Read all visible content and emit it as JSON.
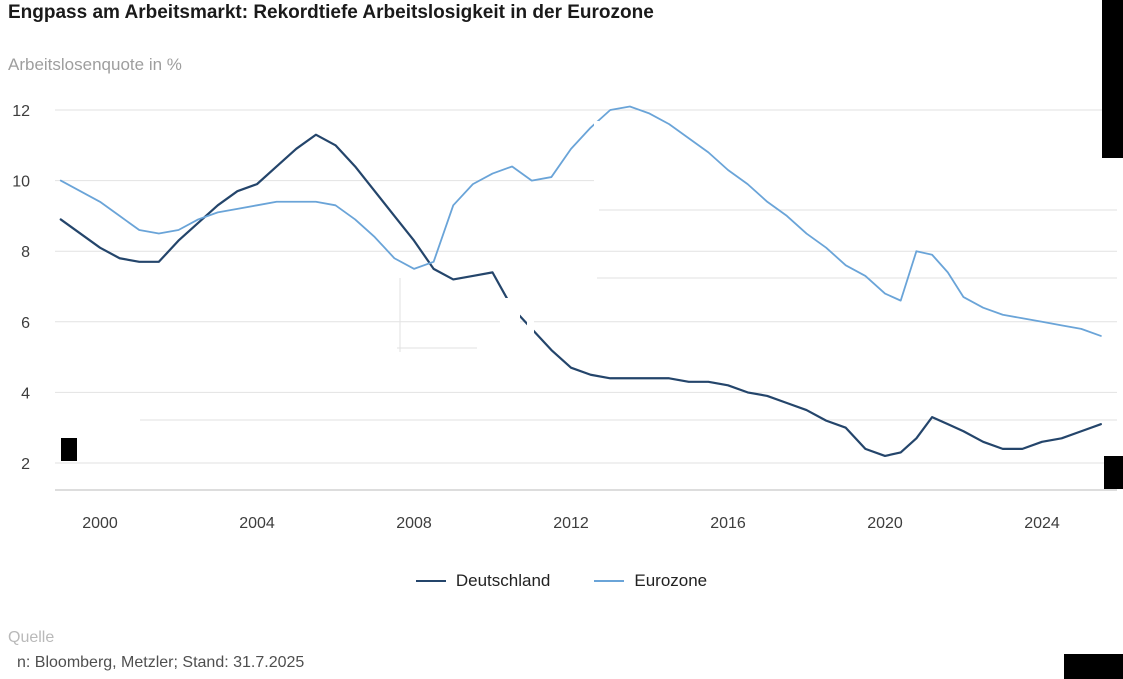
{
  "page": {
    "title": "Engpass am Arbeitsmarkt: Rekordtiefe Arbeitslosigkeit in der Eurozone",
    "subtitle": "Arbeitslosenquote in %"
  },
  "legend": [
    {
      "label": "Deutschland",
      "color": "#24456b"
    },
    {
      "label": "Eurozone",
      "color": "#6aa4d8"
    }
  ],
  "source": {
    "fragment_top": "Quelle",
    "fragment_bottom": "n: Bloomberg, Metzler; Stand: 31.7.2025"
  },
  "chart_data": {
    "type": "line",
    "title": "Engpass am Arbeitsmarkt: Rekordtiefe Arbeitslosigkeit in der Eurozone",
    "ylabel": "Arbeitslosenquote in %",
    "xlabel": "",
    "grid": true,
    "legend_position": "bottom",
    "xlim": [
      1998.9,
      2025.9
    ],
    "ylim": [
      1.2,
      12.6
    ],
    "xticks": [
      2000,
      2004,
      2008,
      2012,
      2016,
      2020,
      2024
    ],
    "yticks": [
      2,
      4,
      6,
      8,
      10,
      12
    ],
    "x": [
      1999,
      1999.5,
      2000,
      2000.5,
      2001,
      2001.5,
      2002,
      2002.5,
      2003,
      2003.5,
      2004,
      2004.5,
      2005,
      2005.5,
      2006,
      2006.5,
      2007,
      2007.5,
      2008,
      2008.5,
      2009,
      2009.5,
      2010,
      2010.5,
      2011,
      2011.5,
      2012,
      2012.5,
      2013,
      2013.5,
      2014,
      2014.5,
      2015,
      2015.5,
      2016,
      2016.5,
      2017,
      2017.5,
      2018,
      2018.5,
      2019,
      2019.5,
      2020,
      2020.4,
      2020.8,
      2021.2,
      2021.6,
      2022,
      2022.5,
      2023,
      2023.5,
      2024,
      2024.5,
      2025,
      2025.5
    ],
    "series": [
      {
        "name": "Deutschland",
        "color": "#24456b",
        "values": [
          8.9,
          8.5,
          8.1,
          7.8,
          7.7,
          7.7,
          8.3,
          8.8,
          9.3,
          9.7,
          9.9,
          10.4,
          10.9,
          11.3,
          11.0,
          10.4,
          9.7,
          9.0,
          8.3,
          7.5,
          7.2,
          7.3,
          7.4,
          6.4,
          5.8,
          5.2,
          4.7,
          4.5,
          4.4,
          4.4,
          4.4,
          4.4,
          4.3,
          4.3,
          4.2,
          4.0,
          3.9,
          3.7,
          3.5,
          3.2,
          3.0,
          2.4,
          2.2,
          2.3,
          2.7,
          3.3,
          3.1,
          2.9,
          2.6,
          2.4,
          2.4,
          2.6,
          2.7,
          2.9,
          3.1
        ]
      },
      {
        "name": "Eurozone",
        "color": "#6aa4d8",
        "values": [
          10.0,
          9.7,
          9.4,
          9.0,
          8.6,
          8.5,
          8.6,
          8.9,
          9.1,
          9.2,
          9.3,
          9.4,
          9.4,
          9.4,
          9.3,
          8.9,
          8.4,
          7.8,
          7.5,
          7.7,
          9.3,
          9.9,
          10.2,
          10.4,
          10.0,
          10.1,
          10.9,
          11.5,
          12.0,
          12.1,
          11.9,
          11.6,
          11.2,
          10.8,
          10.3,
          9.9,
          9.4,
          9.0,
          8.5,
          8.1,
          7.6,
          7.3,
          6.8,
          6.6,
          8.0,
          7.9,
          7.4,
          6.7,
          6.4,
          6.2,
          6.1,
          6.0,
          5.9,
          5.8,
          5.6
        ]
      }
    ]
  }
}
